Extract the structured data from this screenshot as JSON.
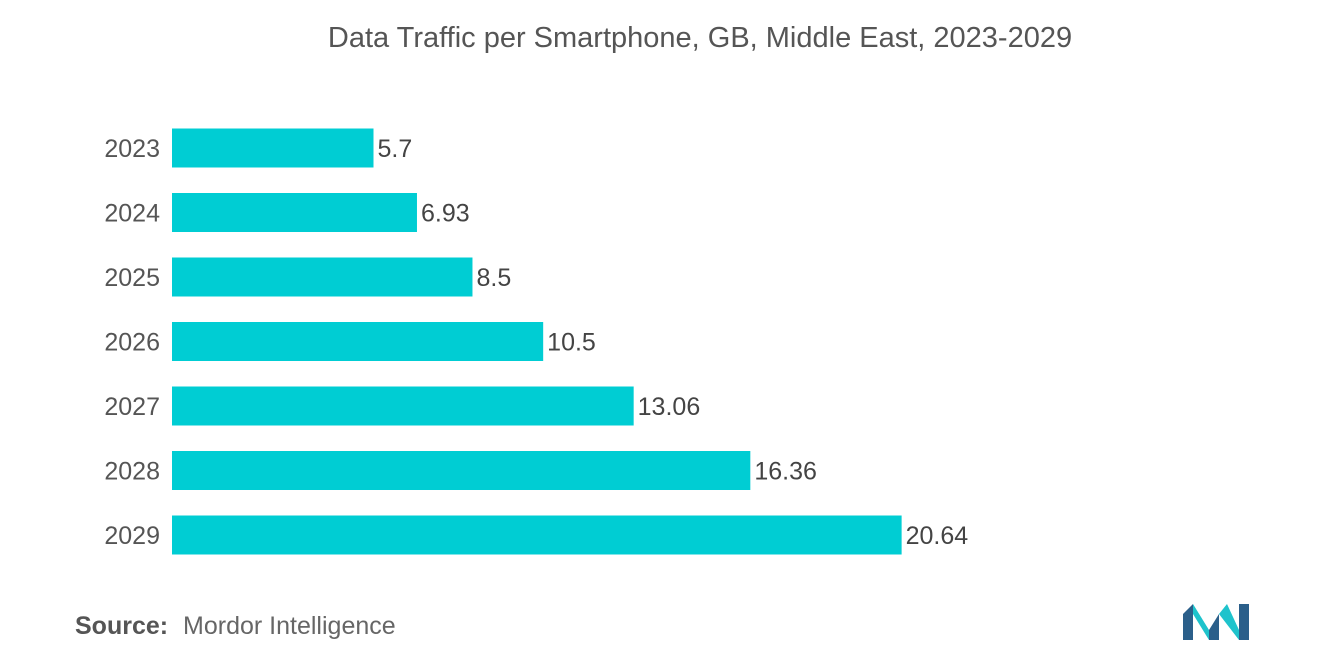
{
  "chart_data": {
    "type": "bar",
    "orientation": "horizontal",
    "title": "Data Traffic per Smartphone, GB, Middle East, 2023-2029",
    "categories": [
      "2023",
      "2024",
      "2025",
      "2026",
      "2027",
      "2028",
      "2029"
    ],
    "values": [
      5.7,
      6.93,
      8.5,
      10.5,
      13.06,
      16.36,
      20.64
    ],
    "value_labels": [
      "5.7",
      "6.93",
      "8.5",
      "10.5",
      "13.06",
      "16.36",
      "20.64"
    ],
    "xlabel": "",
    "ylabel": "",
    "xlim": [
      0,
      24
    ],
    "grid": false,
    "bar_color": "#00cdd3"
  },
  "source": {
    "label": "Source:",
    "text": "Mordor Intelligence"
  },
  "colors": {
    "title": "#555555",
    "tick": "#555555",
    "value_label": "#444444",
    "logo_dark": "#2b5f8a",
    "logo_light": "#1ec3cc"
  },
  "logo_icon": "mordor-intelligence-logo-icon"
}
